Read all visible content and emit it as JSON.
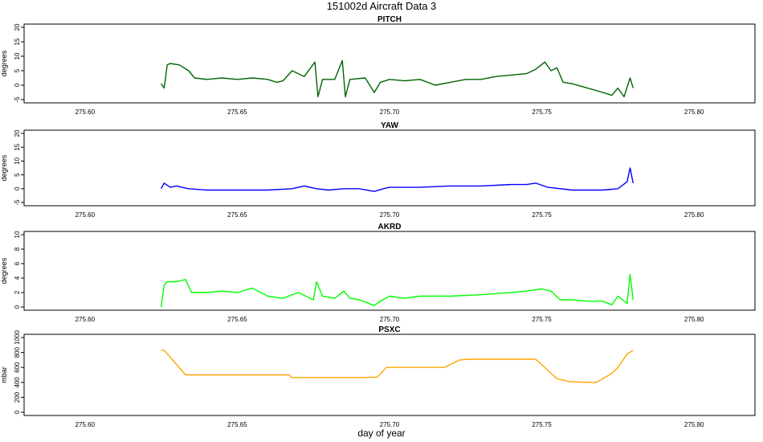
{
  "figure": {
    "title": "151002d   Aircraft Data 3",
    "xlabel": "day of year"
  },
  "chart_data": [
    {
      "type": "line",
      "title": "PITCH",
      "ylabel": "degrees",
      "color": "#006400",
      "xlim": [
        275.58,
        275.82
      ],
      "ylim": [
        -5,
        20
      ],
      "x_ticks": [
        275.6,
        275.65,
        275.7,
        275.75,
        275.8
      ],
      "x_tick_labels": [
        "275.60",
        "275.65",
        "275.70",
        "275.75",
        "275.80"
      ],
      "y_ticks": [
        -5,
        0,
        5,
        10,
        15,
        20
      ],
      "y_tick_labels": [
        "-5",
        "0",
        "5",
        "10",
        "15",
        "20"
      ],
      "x": [
        275.625,
        275.626,
        275.627,
        275.628,
        275.631,
        275.634,
        275.636,
        275.64,
        275.645,
        275.65,
        275.655,
        275.66,
        275.663,
        275.665,
        275.668,
        275.672,
        275.6755,
        275.6765,
        275.678,
        275.682,
        275.6845,
        275.6855,
        275.687,
        275.692,
        275.695,
        275.697,
        275.7,
        275.705,
        275.71,
        275.715,
        275.72,
        275.725,
        275.73,
        275.735,
        275.74,
        275.745,
        275.748,
        275.751,
        275.753,
        275.755,
        275.757,
        275.76,
        275.765,
        275.77,
        275.773,
        275.775,
        275.777,
        275.779,
        275.78
      ],
      "y": [
        0.5,
        -1.0,
        7.0,
        7.5,
        7.0,
        5.0,
        2.5,
        2.0,
        2.5,
        2.0,
        2.5,
        2.0,
        1.0,
        1.5,
        5.0,
        3.0,
        8.0,
        -4.0,
        2.0,
        2.0,
        8.5,
        -4.0,
        2.0,
        2.5,
        -2.5,
        1.0,
        2.0,
        1.5,
        2.0,
        0.0,
        1.0,
        2.0,
        2.0,
        3.0,
        3.5,
        4.0,
        5.5,
        8.0,
        5.0,
        6.0,
        1.0,
        0.5,
        -1.0,
        -2.5,
        -3.5,
        -1.0,
        -4.0,
        2.5,
        -1.0
      ]
    },
    {
      "type": "line",
      "title": "YAW",
      "ylabel": "degrees",
      "color": "#0000ff",
      "xlim": [
        275.58,
        275.82
      ],
      "ylim": [
        -5,
        20
      ],
      "x_ticks": [
        275.6,
        275.65,
        275.7,
        275.75,
        275.8
      ],
      "x_tick_labels": [
        "275.60",
        "275.65",
        "275.70",
        "275.75",
        "275.80"
      ],
      "y_ticks": [
        -5,
        0,
        5,
        10,
        15,
        20
      ],
      "y_tick_labels": [
        "-5",
        "0",
        "5",
        "10",
        "15",
        "20"
      ],
      "x": [
        275.625,
        275.626,
        275.628,
        275.63,
        275.634,
        275.64,
        275.65,
        275.66,
        275.668,
        275.672,
        275.676,
        275.68,
        275.685,
        275.69,
        275.695,
        275.698,
        275.7,
        275.71,
        275.72,
        275.73,
        275.74,
        275.745,
        275.748,
        275.752,
        275.76,
        275.77,
        275.775,
        275.778,
        275.779,
        275.78
      ],
      "y": [
        0.0,
        2.0,
        0.5,
        1.0,
        0.0,
        -0.5,
        -0.5,
        -0.5,
        0.0,
        1.0,
        0.0,
        -0.5,
        0.0,
        0.0,
        -1.0,
        0.0,
        0.5,
        0.5,
        1.0,
        1.0,
        1.5,
        1.5,
        2.0,
        0.5,
        -0.5,
        -0.5,
        0.0,
        2.5,
        7.5,
        2.0
      ]
    },
    {
      "type": "line",
      "title": "AKRD",
      "ylabel": "degrees",
      "color": "#00ff00",
      "xlim": [
        275.58,
        275.82
      ],
      "ylim": [
        0,
        10
      ],
      "x_ticks": [
        275.6,
        275.65,
        275.7,
        275.75,
        275.8
      ],
      "x_tick_labels": [
        "275.60",
        "275.65",
        "275.70",
        "275.75",
        "275.80"
      ],
      "y_ticks": [
        0,
        2,
        4,
        6,
        8,
        10
      ],
      "y_tick_labels": [
        "0",
        "2",
        "4",
        "6",
        "8",
        "10"
      ],
      "x": [
        275.625,
        275.626,
        275.627,
        275.63,
        275.633,
        275.635,
        275.64,
        275.645,
        275.65,
        275.655,
        275.66,
        275.665,
        275.67,
        275.675,
        275.676,
        275.678,
        275.682,
        275.685,
        275.687,
        275.69,
        275.695,
        275.697,
        275.7,
        275.705,
        275.71,
        275.72,
        275.73,
        275.74,
        275.745,
        275.75,
        275.753,
        275.756,
        275.76,
        275.765,
        275.77,
        275.773,
        275.775,
        275.778,
        275.779,
        275.78
      ],
      "y": [
        0.0,
        3.0,
        3.5,
        3.5,
        3.8,
        2.0,
        2.0,
        2.2,
        2.0,
        2.6,
        1.5,
        1.2,
        2.0,
        1.0,
        3.5,
        1.5,
        1.2,
        2.2,
        1.2,
        1.0,
        0.2,
        0.8,
        1.5,
        1.2,
        1.5,
        1.5,
        1.7,
        2.0,
        2.2,
        2.5,
        2.2,
        1.0,
        1.0,
        0.8,
        0.8,
        0.3,
        1.5,
        0.5,
        4.5,
        1.0
      ]
    },
    {
      "type": "line",
      "title": "PSXC",
      "ylabel": "mbar",
      "color": "#ffa500",
      "xlim": [
        275.58,
        275.82
      ],
      "ylim": [
        0,
        1000
      ],
      "x_ticks": [
        275.6,
        275.65,
        275.7,
        275.75,
        275.8
      ],
      "x_tick_labels": [
        "275.60",
        "275.65",
        "275.70",
        "275.75",
        "275.80"
      ],
      "y_ticks": [
        0,
        200,
        400,
        600,
        800,
        1000
      ],
      "y_tick_labels": [
        "0",
        "200",
        "400",
        "600",
        "800",
        "1000"
      ],
      "x": [
        275.625,
        275.626,
        275.633,
        275.64,
        275.667,
        275.668,
        275.69,
        275.696,
        275.699,
        275.715,
        275.718,
        275.723,
        275.726,
        275.745,
        275.748,
        275.755,
        275.759,
        275.765,
        275.768,
        275.773,
        275.775,
        275.778,
        275.78
      ],
      "y": [
        830,
        830,
        500,
        500,
        500,
        465,
        465,
        470,
        600,
        600,
        600,
        700,
        710,
        710,
        710,
        450,
        410,
        400,
        400,
        520,
        600,
        780,
        830
      ]
    }
  ]
}
